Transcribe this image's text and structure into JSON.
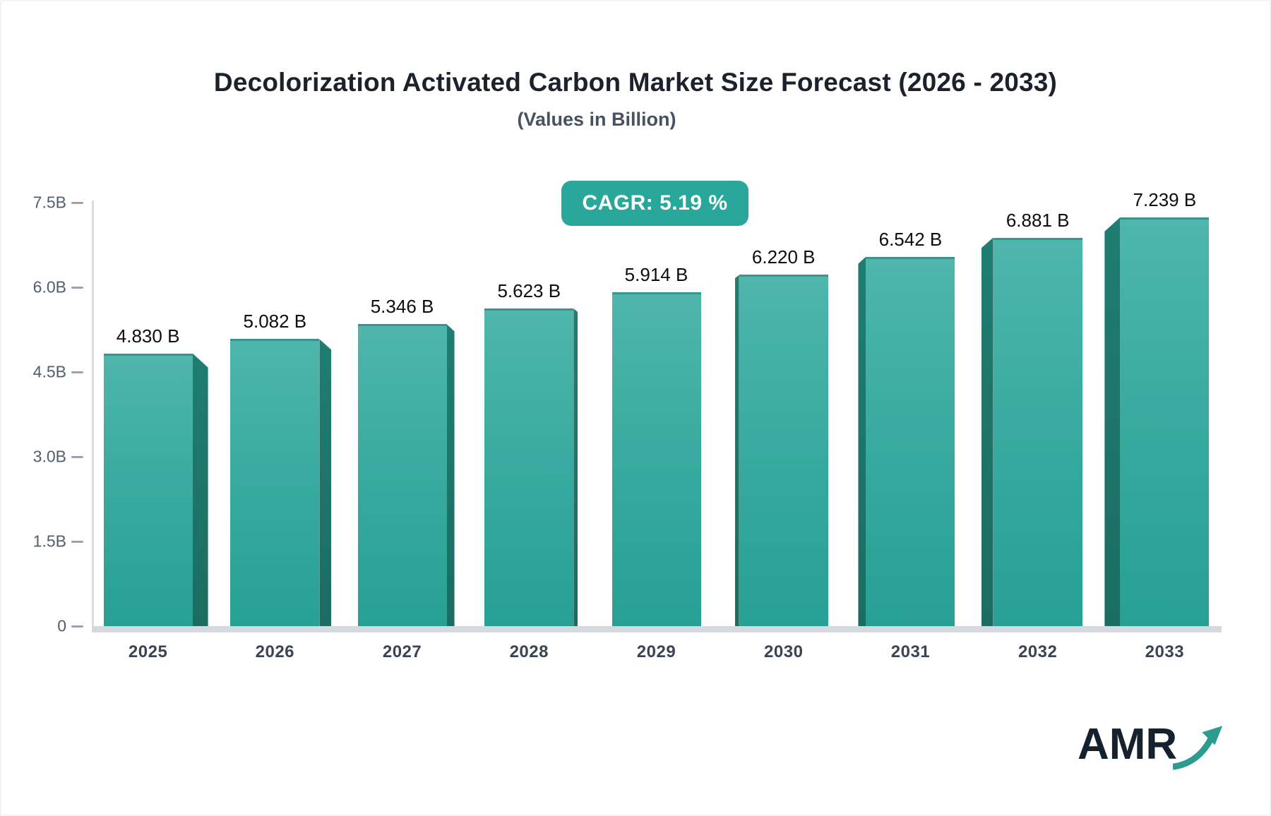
{
  "page": {
    "title": "Decolorization Activated Carbon Market Size Forecast (2026 - 2033)",
    "subtitle": "(Values in Billion)",
    "cagr_label": "CAGR: 5.19 %",
    "logo_text": "AMR"
  },
  "chart_data": {
    "type": "bar",
    "title": "Decolorization Activated Carbon Market Size Forecast (2026 - 2033)",
    "subtitle": "(Values in Billion)",
    "categories": [
      "2025",
      "2026",
      "2027",
      "2028",
      "2029",
      "2030",
      "2031",
      "2032",
      "2033"
    ],
    "values": [
      4.83,
      5.082,
      5.346,
      5.623,
      5.914,
      6.22,
      6.542,
      6.881,
      7.239
    ],
    "value_labels": [
      "4.830 B",
      "5.082 B",
      "5.346 B",
      "5.623 B",
      "5.914 B",
      "6.220 B",
      "6.542 B",
      "6.881 B",
      "7.239 B"
    ],
    "unit": "Billion",
    "cagr_percent": 5.19,
    "annotation": "CAGR: 5.19 %",
    "xlabel": "",
    "ylabel": "",
    "ylim": [
      0,
      7.5
    ],
    "yticks": [
      {
        "value": 7.5,
        "label": "7.5B"
      },
      {
        "value": 6.0,
        "label": "6.0B"
      },
      {
        "value": 4.5,
        "label": "4.5B"
      },
      {
        "value": 3.0,
        "label": "3.0B"
      },
      {
        "value": 1.5,
        "label": "1.5B"
      },
      {
        "value": 0,
        "label": "0"
      }
    ],
    "grid": false,
    "legend": null,
    "colors": {
      "bar_top": "#4FB6AC",
      "bar_bottom": "#27A094",
      "bar_side": "#1F7D71",
      "badge": "#2AA79B",
      "axis": "#D9DCE1",
      "logo_arrow": "#2D9C90"
    }
  }
}
